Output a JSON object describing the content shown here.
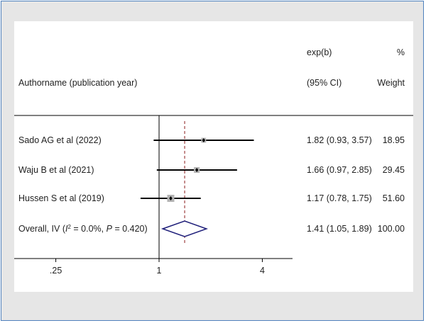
{
  "chart_data": {
    "type": "forest",
    "header": {
      "author_label": "Authorname (publication year)",
      "effect_label": "exp(b)",
      "ci_label": "(95% CI)",
      "pct_label": "%",
      "weight_label": "Weight"
    },
    "studies": [
      {
        "label": "Sado AG et al (2022)",
        "estimate": 1.82,
        "lower": 0.93,
        "upper": 3.57,
        "effect_text": "1.82 (0.93, 3.57)",
        "weight_text": "18.95",
        "weight": 18.95
      },
      {
        "label": "Waju B et al (2021)",
        "estimate": 1.66,
        "lower": 0.97,
        "upper": 2.85,
        "effect_text": "1.66 (0.97, 2.85)",
        "weight_text": "29.45",
        "weight": 29.45
      },
      {
        "label": "Hussen S et al (2019)",
        "estimate": 1.17,
        "lower": 0.78,
        "upper": 1.75,
        "effect_text": "1.17 (0.78, 1.75)",
        "weight_text": "51.60",
        "weight": 51.6
      }
    ],
    "overall": {
      "label_prefix": "Overall, IV (",
      "label_i2": "I",
      "label_sup": "2",
      "label_mid": " = 0.0%, ",
      "label_p": "P",
      "label_suffix": " = 0.420)",
      "estimate": 1.41,
      "lower": 1.05,
      "upper": 1.89,
      "effect_text": "1.41 (1.05, 1.89)",
      "weight_text": "100.00"
    },
    "x_scale": "log",
    "null_value": 1,
    "xlim": [
      0.143,
      6.0
    ],
    "x_ticks": [
      {
        "value": 0.25,
        "label": ".25"
      },
      {
        "value": 1,
        "label": "1"
      },
      {
        "value": 4,
        "label": "4"
      }
    ]
  },
  "colors": {
    "ci_line": "#000000",
    "marker_box": "#b3b3b3",
    "marker_point": "#000000",
    "null_line": "#000000",
    "overall_line": "#8b1a1a",
    "diamond": "#1f1f7a",
    "separator": "#000000"
  }
}
